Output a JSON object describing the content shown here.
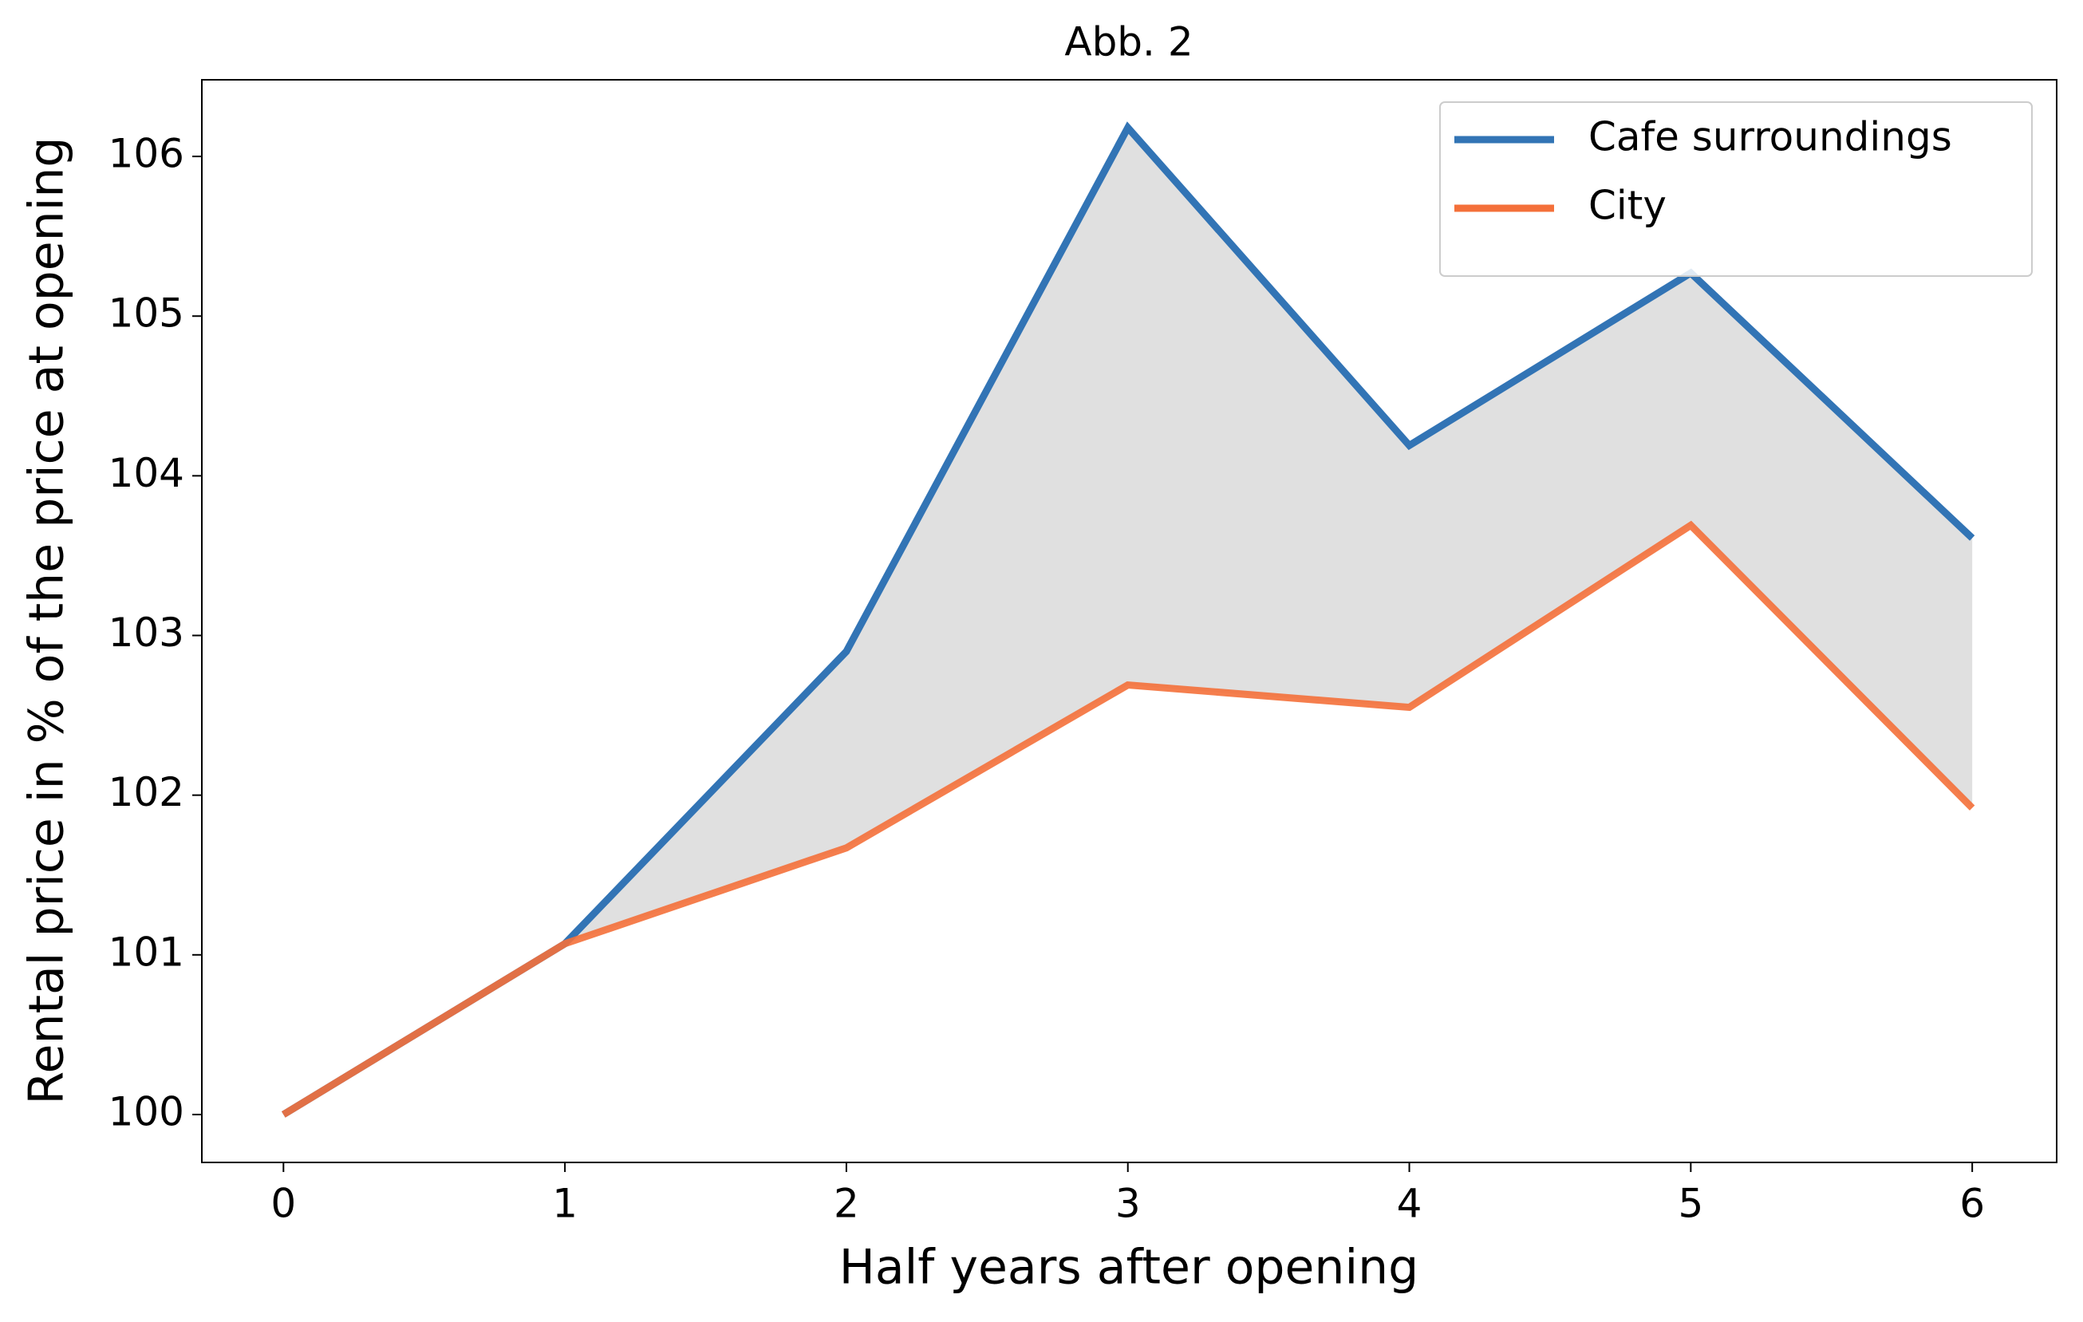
{
  "chart_data": {
    "type": "line",
    "title": "Abb. 2",
    "x_label": "Half years after opening",
    "y_label": "Rental price in % of the price at opening",
    "x": [
      0,
      1,
      2,
      3,
      4,
      5,
      6
    ],
    "series": [
      {
        "name": "Cafe surroundings",
        "color": "#3274b5",
        "values": [
          100,
          101.07,
          102.9,
          106.18,
          104.19,
          105.27,
          103.61
        ]
      },
      {
        "name": "City",
        "color": "#f4703a",
        "values": [
          100,
          101.07,
          101.67,
          102.69,
          102.55,
          103.69,
          101.92
        ]
      }
    ],
    "fill_between_color": "#e0e0e0",
    "xlim": [
      -0.29,
      6.3
    ],
    "xticks": [
      0,
      1,
      2,
      3,
      4,
      5,
      6
    ],
    "ylim": [
      99.7,
      106.48
    ],
    "yticks": [
      100,
      101,
      102,
      103,
      104,
      105,
      106
    ],
    "legend": "upper right"
  }
}
